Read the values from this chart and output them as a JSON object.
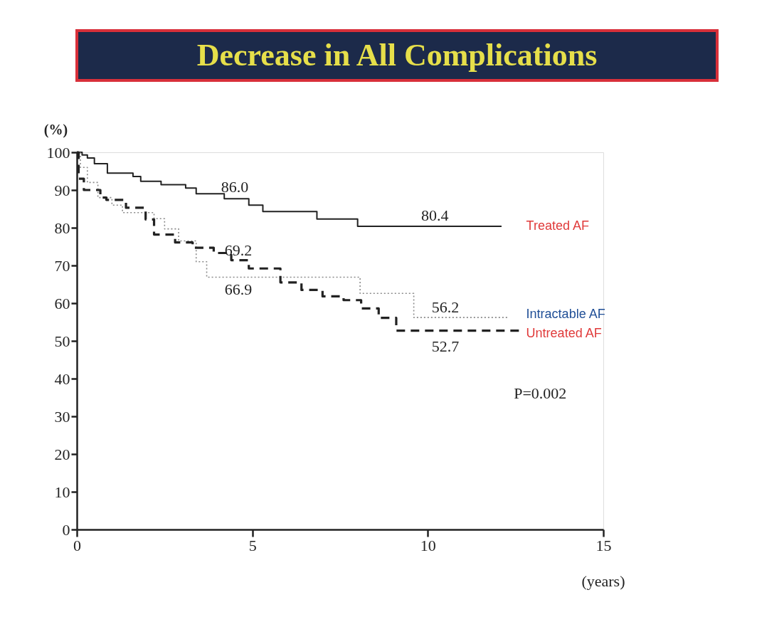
{
  "chart_data": {
    "type": "step",
    "title": "Decrease in All Complications",
    "xlabel": "(years)",
    "ylabel": "(%)",
    "xlim": [
      0,
      15
    ],
    "xticks": [
      0,
      5,
      10,
      15
    ],
    "ylim": [
      0,
      100
    ],
    "yticks": [
      0,
      10,
      20,
      30,
      40,
      50,
      60,
      70,
      80,
      90,
      100
    ],
    "grid": false,
    "legend": false,
    "marker": "none",
    "series": [
      {
        "name": "Treated AF",
        "color": "#222222",
        "line_style": "solid",
        "x": [
          0,
          0.15,
          0.3,
          0.5,
          0.87,
          1.6,
          1.82,
          2.4,
          3.1,
          3.4,
          4.2,
          4.9,
          5.3,
          6.84,
          8.0,
          12.1
        ],
        "values": [
          100,
          99.3,
          98.5,
          97,
          94.5,
          93.6,
          92.3,
          91.4,
          90.5,
          89.0,
          87.7,
          86.0,
          84.3,
          82.3,
          80.4,
          80.4
        ]
      },
      {
        "name": "Intractable AF",
        "color": "#8a8a8a",
        "line_style": "dotted",
        "x": [
          0,
          0.1,
          0.3,
          0.6,
          1.0,
          1.3,
          2.2,
          2.5,
          2.9,
          3.4,
          3.7,
          8.07,
          9.6,
          12.3
        ],
        "values": [
          100,
          96,
          92,
          88,
          86,
          84,
          82.4,
          79.7,
          76.5,
          71,
          66.9,
          62.6,
          56.2,
          56.2
        ]
      },
      {
        "name": "Untreated AF",
        "color": "#222222",
        "line_style": "dashed",
        "x": [
          0,
          0.05,
          0.2,
          0.67,
          0.84,
          1.4,
          1.96,
          2.2,
          2.8,
          3.3,
          3.9,
          4.4,
          4.9,
          5.8,
          6.4,
          7.0,
          7.6,
          8.1,
          8.6,
          9.1,
          12.6
        ],
        "values": [
          100,
          93,
          90,
          88,
          87.4,
          85.3,
          82.2,
          78.2,
          76.1,
          74.7,
          73.3,
          71.4,
          69.2,
          65.5,
          63.5,
          61.8,
          60.8,
          58.6,
          56.1,
          52.7,
          52.7
        ]
      }
    ],
    "annotations": [
      {
        "text": "86.0",
        "x": 4.5,
        "y": 87.7
      },
      {
        "text": "80.4",
        "x": 10.2,
        "y": 80.4
      },
      {
        "text": "69.2",
        "x": 4.6,
        "y": 71.4
      },
      {
        "text": "66.9",
        "x": 4.6,
        "y": 66.9
      },
      {
        "text": "56.2",
        "x": 10.5,
        "y": 56.2
      },
      {
        "text": "52.7",
        "x": 10.5,
        "y": 52.7
      },
      "P=0.002"
    ]
  }
}
